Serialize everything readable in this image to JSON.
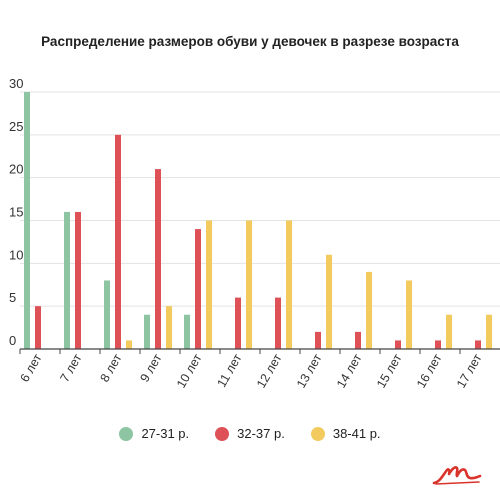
{
  "chart_data": {
    "type": "bar",
    "title": "Распределение размеров обуви  у девочек в разрезе возраста",
    "categories": [
      "6 лет",
      "7 лет",
      "8 лет",
      "9 лет",
      "10 лет",
      "11 лет",
      "12 лет",
      "13 лет",
      "14 лет",
      "15 лет",
      "16 лет",
      "17 лет"
    ],
    "series": [
      {
        "name": "27-31 р.",
        "color": "#8dc5a3",
        "values": [
          30,
          16,
          8,
          4,
          4,
          0,
          0,
          0,
          0,
          0,
          0,
          0
        ]
      },
      {
        "name": "32-37 р.",
        "color": "#dd5157",
        "values": [
          5,
          16,
          25,
          21,
          14,
          6,
          6,
          2,
          2,
          1,
          1,
          1
        ]
      },
      {
        "name": "38-41 р.",
        "color": "#f2ca5e",
        "values": [
          0,
          0,
          1,
          5,
          15,
          15,
          15,
          11,
          9,
          8,
          4,
          4
        ]
      }
    ],
    "ylim": [
      0,
      30
    ],
    "yticks": [
      0,
      5,
      10,
      15,
      20,
      25,
      30
    ],
    "grid": true,
    "legend": "bottom",
    "xlabel": "",
    "ylabel": ""
  },
  "logo": {
    "icon": "brand-logo-icon",
    "color": "#d9342b"
  }
}
